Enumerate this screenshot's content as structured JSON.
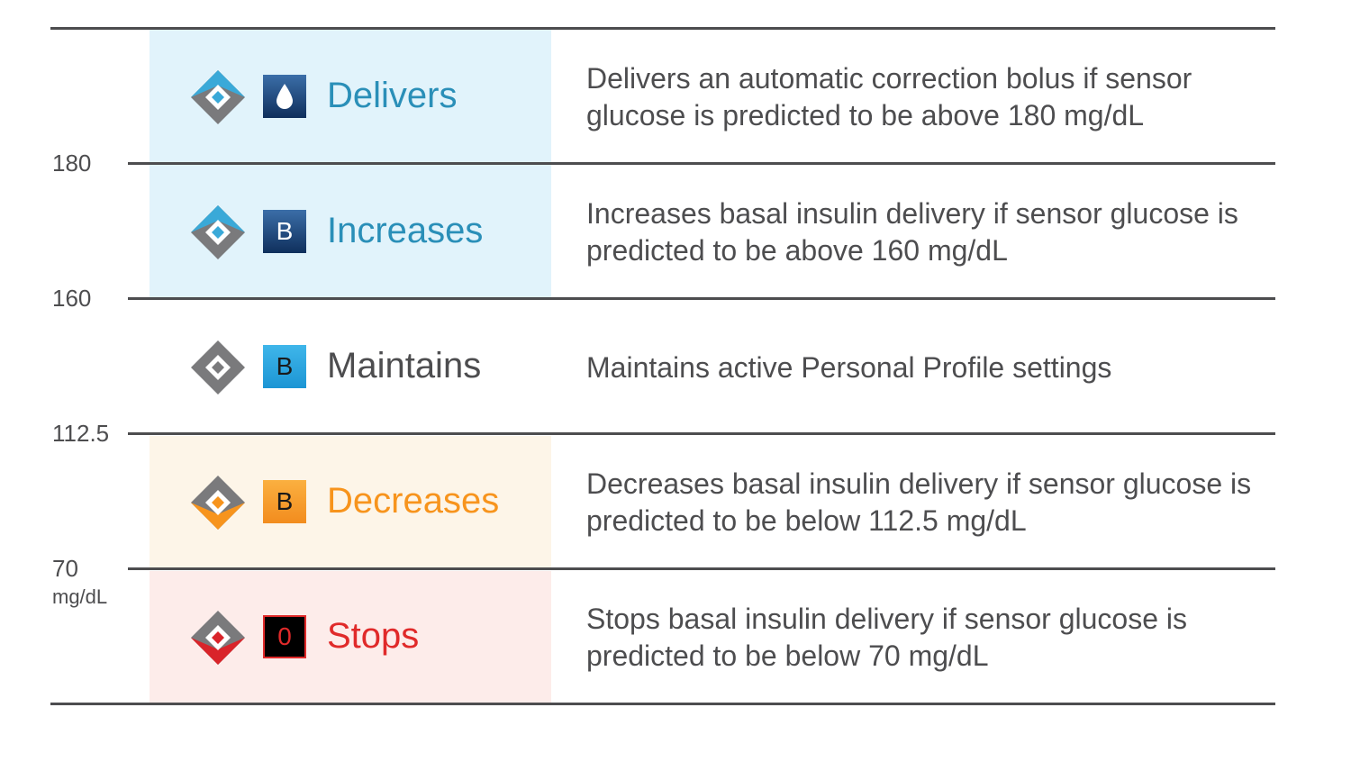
{
  "axis": {
    "ticks": [
      "180",
      "160",
      "112.5",
      "70"
    ],
    "unit": "mg/dL"
  },
  "rows": [
    {
      "badge": "",
      "badge_icon": "drop-icon",
      "action": "Delivers",
      "color": "#2a8fb8",
      "band_color": "#e1f3fb",
      "description": "Delivers an automatic correction bolus if sensor glucose is predicted to be above 180 mg/dL"
    },
    {
      "badge": "B",
      "action": "Increases",
      "color": "#2a8fb8",
      "band_color": "#e1f3fb",
      "description": "Increases basal insulin delivery if sensor glucose is predicted to be above 160 mg/dL"
    },
    {
      "badge": "B",
      "action": "Maintains",
      "color": "#4d4d4f",
      "band_color": "#ffffff",
      "description": "Maintains active Personal Profile settings"
    },
    {
      "badge": "B",
      "action": "Decreases",
      "color": "#f7941d",
      "band_color": "#fdf5e8",
      "description": "Decreases basal insulin delivery if sensor glucose is predicted to be below 112.5 mg/dL"
    },
    {
      "badge": "0",
      "action": "Stops",
      "color": "#e02a2a",
      "band_color": "#fdecea",
      "description": "Stops basal insulin delivery if sensor glucose is predicted to be below 70 mg/dL"
    }
  ]
}
